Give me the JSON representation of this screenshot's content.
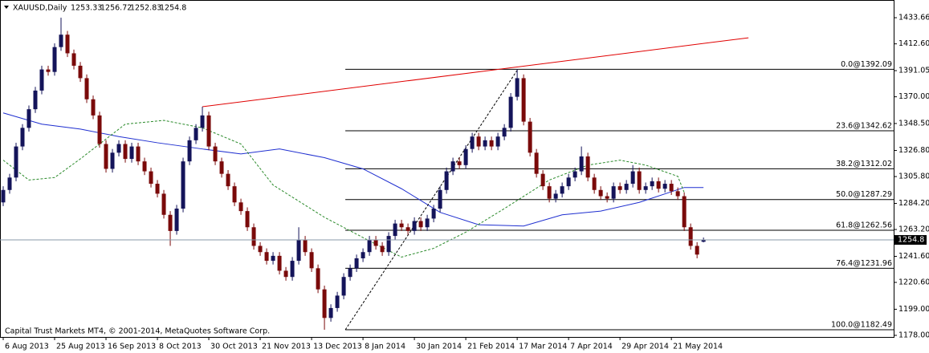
{
  "chart_data": {
    "type": "candlestick",
    "symbol": "XAUUSD,Daily",
    "footer": "Capital Trust Markets MT4, © 2001-2014, MetaQuotes Software Corp.",
    "bull_color": "#14145a",
    "bear_color": "#7a0a0a",
    "ylim": [
      1176.7,
      1447.9
    ],
    "yticks": [
      1433.66,
      {
        "value": 1412.6,
        "label": "1412.60"
      },
      1391.05,
      {
        "value": 1370,
        "label": "1370.00"
      },
      {
        "value": 1348.5,
        "label": "1348.50"
      },
      {
        "value": 1326.8,
        "label": "1326.80"
      },
      {
        "value": 1305.8,
        "label": "1305.80"
      },
      {
        "value": 1284.2,
        "label": "1284.20"
      },
      {
        "value": 1263.2,
        "label": "1263.20"
      },
      {
        "value": 1241.6,
        "label": "1241.60"
      },
      {
        "value": 1220.6,
        "label": "1220.60"
      },
      {
        "value": 1199,
        "label": "1199.00"
      },
      {
        "value": 1178,
        "label": "1178.00"
      }
    ],
    "xlim": [
      -0.5,
      138.6
    ],
    "xticks": [
      {
        "value": 0,
        "label": "6 Aug 2013"
      },
      {
        "value": 8,
        "label": "25 Aug 2013"
      },
      {
        "value": 16,
        "label": "16 Sep 2013"
      },
      {
        "value": 24,
        "label": "8 Oct 2013"
      },
      {
        "value": 32,
        "label": "30 Oct 2013"
      },
      {
        "value": 40,
        "label": "21 Nov 2013"
      },
      {
        "value": 48,
        "label": "13 Dec 2013"
      },
      {
        "value": 56,
        "label": "8 Jan 2014"
      },
      {
        "value": 64,
        "label": "30 Jan 2014"
      },
      {
        "value": 72,
        "label": "21 Feb 2014"
      },
      {
        "value": 80,
        "label": "17 Mar 2014"
      },
      {
        "value": 88,
        "label": "7 Apr 2014"
      },
      {
        "value": 96,
        "label": "29 Apr 2014"
      },
      {
        "value": 104,
        "label": "21 May 2014"
      }
    ],
    "candles": [
      [
        1285,
        1298,
        1282,
        1295
      ],
      [
        1295,
        1308,
        1292,
        1305
      ],
      [
        1305,
        1333,
        1302,
        1330
      ],
      [
        1330,
        1348,
        1327,
        1345
      ],
      [
        1345,
        1363,
        1342,
        1360
      ],
      [
        1360,
        1378,
        1357,
        1375
      ],
      [
        1375,
        1395,
        1372,
        1392
      ],
      [
        1392,
        1395,
        1387,
        1390
      ],
      [
        1390,
        1413,
        1387,
        1410
      ],
      [
        1410,
        1433.66,
        1407,
        1420
      ],
      [
        1420,
        1423,
        1402,
        1405
      ],
      [
        1405,
        1408,
        1392,
        1395
      ],
      [
        1395,
        1398,
        1382,
        1385
      ],
      [
        1385,
        1388,
        1365,
        1368
      ],
      [
        1368,
        1371,
        1352,
        1355
      ],
      [
        1355,
        1358,
        1329,
        1332
      ],
      [
        1332,
        1335,
        1309,
        1312
      ],
      [
        1312,
        1328,
        1309,
        1325
      ],
      [
        1325,
        1335,
        1322,
        1332
      ],
      [
        1332,
        1335,
        1317,
        1320
      ],
      [
        1320,
        1333,
        1317,
        1330
      ],
      [
        1330,
        1333,
        1315,
        1318
      ],
      [
        1318,
        1321,
        1307,
        1310
      ],
      [
        1310,
        1313,
        1297,
        1300
      ],
      [
        1300,
        1303,
        1289,
        1292
      ],
      [
        1292,
        1295,
        1272,
        1275
      ],
      [
        1275,
        1278,
        1250,
        1262
      ],
      [
        1262,
        1283,
        1259,
        1280
      ],
      [
        1280,
        1321,
        1277,
        1318
      ],
      [
        1318,
        1338,
        1315,
        1335
      ],
      [
        1335,
        1348,
        1332,
        1345
      ],
      [
        1345,
        1362,
        1342,
        1355
      ],
      [
        1355,
        1358,
        1327,
        1330
      ],
      [
        1330,
        1333,
        1315,
        1318
      ],
      [
        1318,
        1321,
        1305,
        1308
      ],
      [
        1308,
        1311,
        1295,
        1298
      ],
      [
        1298,
        1301,
        1282,
        1285
      ],
      [
        1285,
        1288,
        1275,
        1278
      ],
      [
        1278,
        1281,
        1262,
        1265
      ],
      [
        1265,
        1268,
        1247,
        1250
      ],
      [
        1250,
        1253,
        1242,
        1245
      ],
      [
        1245,
        1248,
        1235,
        1238
      ],
      [
        1238,
        1245,
        1235,
        1242
      ],
      [
        1242,
        1245,
        1227,
        1230
      ],
      [
        1230,
        1233,
        1222,
        1225
      ],
      [
        1225,
        1241,
        1222,
        1238
      ],
      [
        1238,
        1265,
        1235,
        1255
      ],
      [
        1255,
        1258,
        1242,
        1245
      ],
      [
        1245,
        1248,
        1229,
        1232
      ],
      [
        1232,
        1235,
        1212,
        1215
      ],
      [
        1215,
        1218,
        1182.49,
        1192
      ],
      [
        1192,
        1203,
        1189,
        1200
      ],
      [
        1200,
        1213,
        1197,
        1210
      ],
      [
        1210,
        1228,
        1207,
        1225
      ],
      [
        1225,
        1235,
        1222,
        1232
      ],
      [
        1232,
        1243,
        1229,
        1240
      ],
      [
        1240,
        1248,
        1237,
        1245
      ],
      [
        1245,
        1258,
        1242,
        1255
      ],
      [
        1255,
        1258,
        1247,
        1250
      ],
      [
        1250,
        1253,
        1242,
        1245
      ],
      [
        1245,
        1261,
        1242,
        1258
      ],
      [
        1258,
        1271,
        1255,
        1268
      ],
      [
        1268,
        1271,
        1262,
        1265
      ],
      [
        1265,
        1268,
        1259,
        1262
      ],
      [
        1262,
        1273,
        1259,
        1270
      ],
      [
        1270,
        1273,
        1262,
        1265
      ],
      [
        1265,
        1275,
        1262,
        1272
      ],
      [
        1272,
        1283,
        1269,
        1280
      ],
      [
        1280,
        1298,
        1277,
        1295
      ],
      [
        1295,
        1313,
        1292,
        1310
      ],
      [
        1310,
        1321,
        1307,
        1318
      ],
      [
        1318,
        1321,
        1312,
        1315
      ],
      [
        1315,
        1331,
        1312,
        1328
      ],
      [
        1328,
        1341,
        1325,
        1338
      ],
      [
        1338,
        1341,
        1327,
        1330
      ],
      [
        1330,
        1338,
        1327,
        1335
      ],
      [
        1335,
        1338,
        1327,
        1330
      ],
      [
        1330,
        1341,
        1327,
        1338
      ],
      [
        1338,
        1348,
        1335,
        1345
      ],
      [
        1345,
        1373,
        1342,
        1370
      ],
      [
        1370,
        1392.09,
        1367,
        1385
      ],
      [
        1385,
        1388,
        1347,
        1350
      ],
      [
        1350,
        1353,
        1322,
        1325
      ],
      [
        1325,
        1328,
        1305,
        1308
      ],
      [
        1308,
        1311,
        1295,
        1298
      ],
      [
        1298,
        1301,
        1285,
        1288
      ],
      [
        1288,
        1295,
        1285,
        1292
      ],
      [
        1292,
        1301,
        1289,
        1298
      ],
      [
        1298,
        1308,
        1295,
        1305
      ],
      [
        1305,
        1313,
        1302,
        1310
      ],
      [
        1310,
        1330,
        1307,
        1322
      ],
      [
        1322,
        1325,
        1302,
        1305
      ],
      [
        1305,
        1308,
        1292,
        1295
      ],
      [
        1295,
        1298,
        1287,
        1290
      ],
      [
        1290,
        1293,
        1285,
        1288
      ],
      [
        1288,
        1301,
        1285,
        1298
      ],
      [
        1298,
        1301,
        1292,
        1295
      ],
      [
        1295,
        1303,
        1292,
        1300
      ],
      [
        1300,
        1315,
        1297,
        1310
      ],
      [
        1310,
        1313,
        1292,
        1295
      ],
      [
        1295,
        1301,
        1292,
        1298
      ],
      [
        1298,
        1305,
        1295,
        1302
      ],
      [
        1302,
        1305,
        1293,
        1296
      ],
      [
        1296,
        1303,
        1293,
        1300
      ],
      [
        1300,
        1303,
        1291,
        1294
      ],
      [
        1294,
        1297,
        1287,
        1290
      ],
      [
        1290,
        1293,
        1262,
        1265
      ],
      [
        1265,
        1268,
        1247,
        1250
      ],
      [
        1250,
        1253,
        1240,
        1243
      ],
      [
        1253.33,
        1256.72,
        1252.83,
        1254.8
      ]
    ],
    "moving_averages": [
      {
        "color": "#1f2fd0",
        "dashed": false,
        "x": [
          0,
          6,
          12,
          18,
          24,
          31,
          37,
          43,
          50,
          56,
          62,
          68,
          74,
          81,
          87,
          93,
          99,
          106,
          109
        ],
        "values": [
          1357,
          1348,
          1344,
          1338,
          1333,
          1328,
          1324,
          1328,
          1321,
          1312,
          1296,
          1277,
          1267,
          1266,
          1275,
          1278,
          1285,
          1297,
          1297
        ]
      },
      {
        "color": "#2a8a2a",
        "dashed": true,
        "x": [
          0,
          4,
          8,
          12,
          19,
          25,
          31,
          37,
          42,
          50,
          57,
          62,
          67,
          72,
          78,
          85,
          91,
          96,
          100,
          105,
          106
        ],
        "values": [
          1319,
          1303,
          1305,
          1320,
          1348,
          1351,
          1345,
          1332,
          1299,
          1273,
          1254,
          1241,
          1248,
          1261,
          1280,
          1303,
          1315,
          1319,
          1315,
          1306,
          1293
        ]
      }
    ],
    "trendline": {
      "color": "#e00000",
      "x": [
        31,
        116
      ],
      "values": [
        1362,
        1417.5
      ]
    },
    "zigzag": {
      "x": [
        53.25,
        80.1
      ],
      "values": [
        1182.49,
        1392.09
      ]
    },
    "fib_levels": [
      {
        "value": 1392.09,
        "label": "0.0@1392.09"
      },
      {
        "value": 1342.62,
        "label": "23.6@1342.62"
      },
      {
        "value": 1312.02,
        "label": "38.2@1312.02"
      },
      {
        "value": 1287.29,
        "label": "50.0@1287.29"
      },
      {
        "value": 1262.56,
        "label": "61.8@1262.56"
      },
      {
        "value": 1231.96,
        "label": "76.4@1231.96"
      },
      {
        "value": 1182.49,
        "label": "100.0@1182.49"
      }
    ]
  }
}
